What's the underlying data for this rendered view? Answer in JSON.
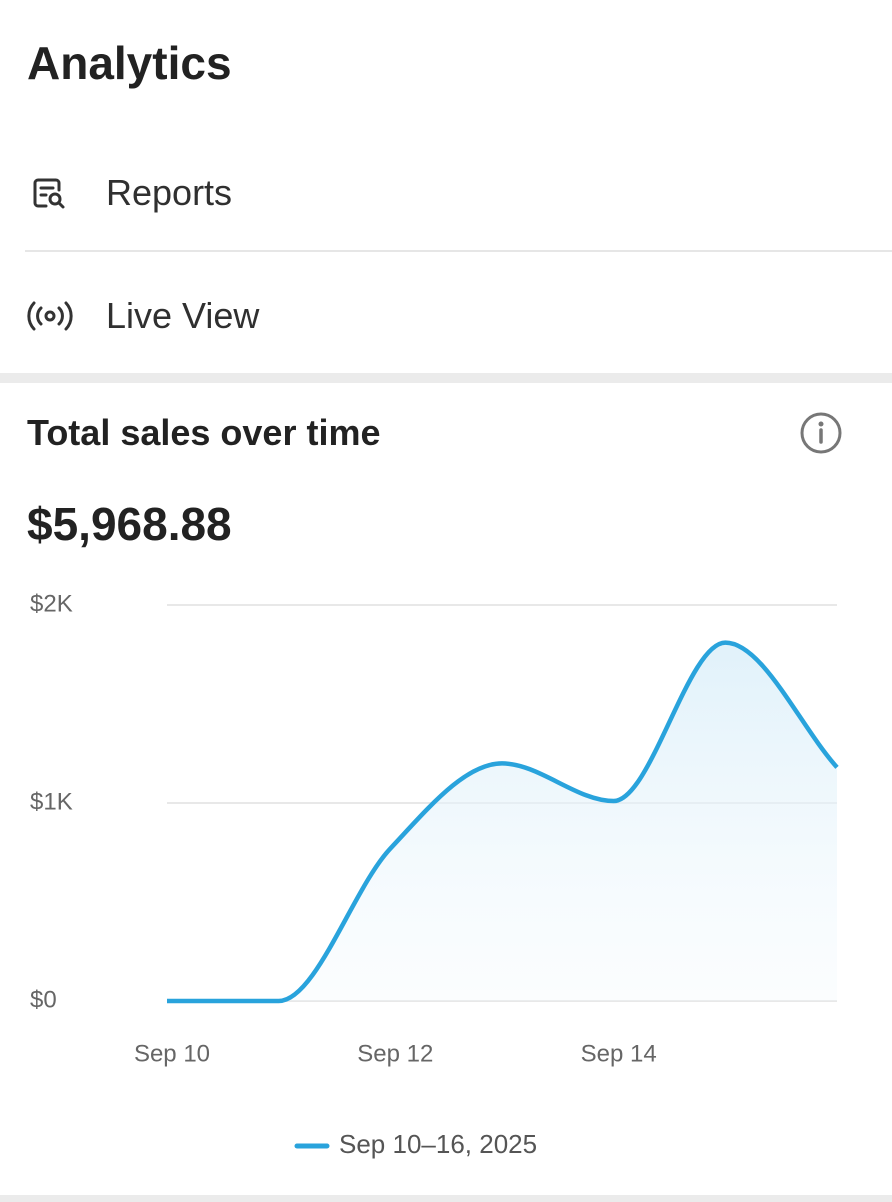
{
  "header": {
    "title": "Analytics"
  },
  "menu": [
    {
      "label": "Reports"
    },
    {
      "label": "Live View"
    }
  ],
  "card": {
    "title": "Total sales over time",
    "total": "$5,968.88"
  },
  "chart_data": {
    "type": "line",
    "categories": [
      "Sep 10",
      null,
      "Sep 12",
      null,
      "Sep 14",
      null,
      null
    ],
    "series": [
      {
        "name": "Sep 10–16, 2025",
        "color": "#29a3dc",
        "values": [
          0,
          0,
          770,
          1200,
          1010,
          1810,
          1180
        ]
      }
    ],
    "ylim": [
      0,
      2000
    ],
    "yticks": [
      {
        "value": 0,
        "label": "$0"
      },
      {
        "value": 1000,
        "label": "$1K"
      },
      {
        "value": 2000,
        "label": "$2K"
      }
    ],
    "grid": true
  }
}
